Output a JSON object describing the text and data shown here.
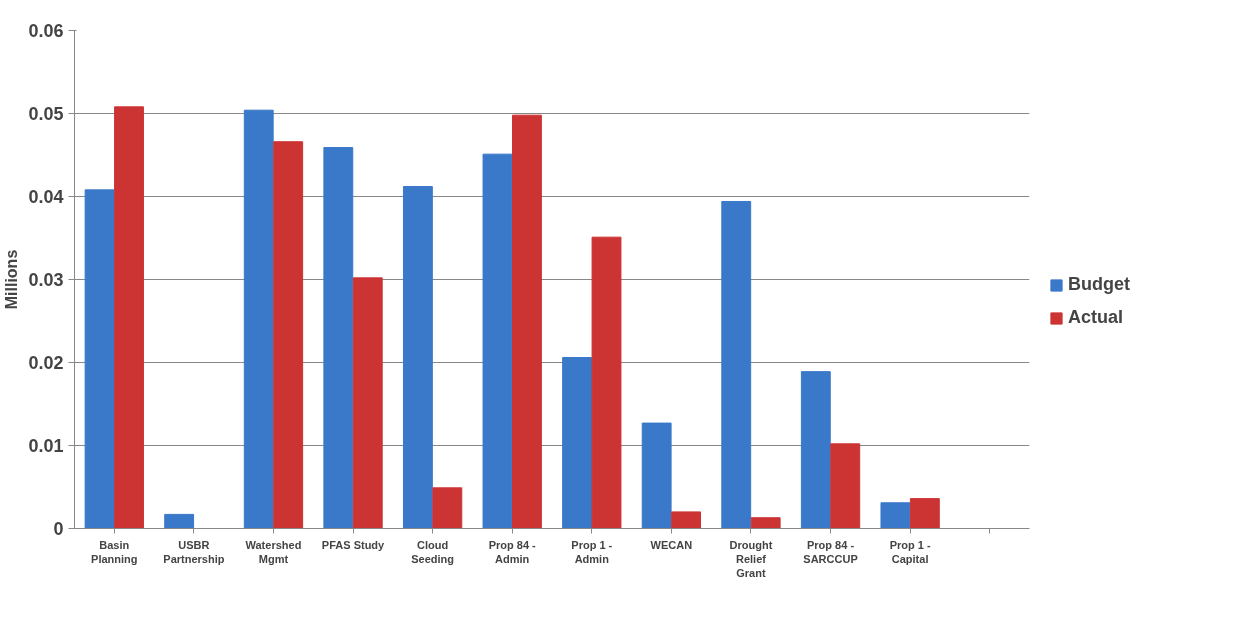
{
  "chart_data": {
    "type": "bar",
    "ylabel": "Millions",
    "categories": [
      "Basin Planning",
      "USBR Partnership",
      "Watershed Mgmt",
      "PFAS Study",
      "Cloud Seeding",
      "Prop 84 - Admin",
      "Prop 1 - Admin",
      "WECAN",
      "Drought Relief Grant",
      "Prop 84 - SARCCUP",
      "Prop 1 - Capital",
      null
    ],
    "series": [
      {
        "name": "Budget",
        "color": "#3a78c9",
        "values": [
          0.0408,
          0.0017,
          0.0504,
          0.0459,
          0.0412,
          0.0451,
          0.0206,
          0.0127,
          0.0394,
          0.0189,
          0.0031,
          null
        ]
      },
      {
        "name": "Actual",
        "color": "#cc3333",
        "values": [
          0.0508,
          0,
          0.0466,
          0.0302,
          0.0049,
          0.0498,
          0.0351,
          0.002,
          0.0013,
          0.0102,
          0.0036,
          null
        ]
      }
    ],
    "ylim": [
      0,
      0.06
    ],
    "yticks": [
      0,
      0.01,
      0.02,
      0.03,
      0.04,
      0.05,
      0.06
    ],
    "grid": "y",
    "legend": "right"
  }
}
